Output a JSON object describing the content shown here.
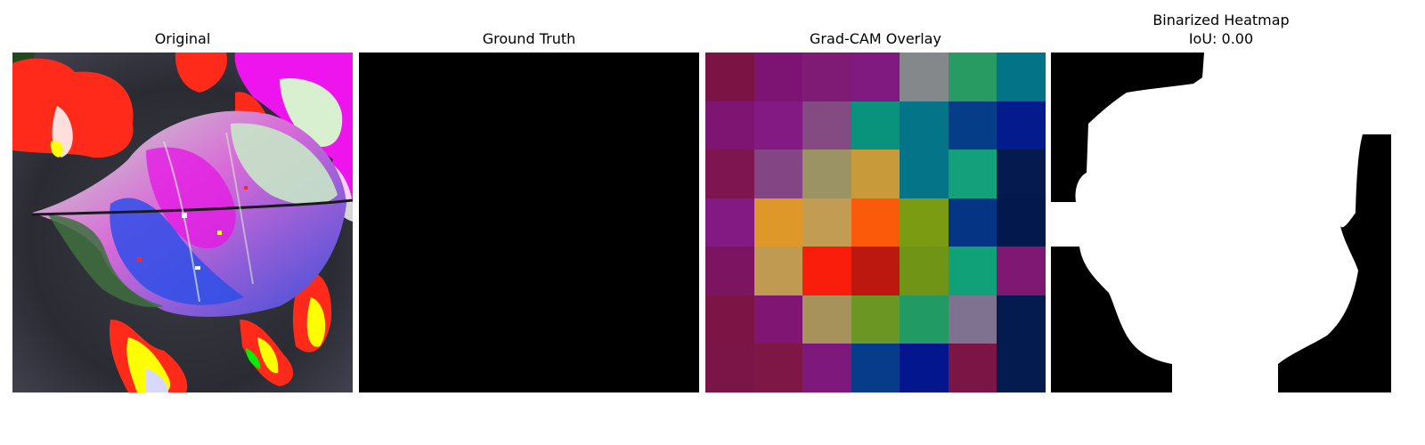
{
  "panels": [
    {
      "title": "Original"
    },
    {
      "title": "Ground Truth"
    },
    {
      "title": "Grad-CAM Overlay"
    },
    {
      "title": "Binarized Heatmap",
      "subtitle": "IoU: 0.00"
    }
  ],
  "gradcam_grid": [
    [
      "#7b1445",
      "#7d1372",
      "#7f1a75",
      "#801a80",
      "#85888a",
      "#279b62",
      "#037488"
    ],
    [
      "#7e1572",
      "#831a84",
      "#844b83",
      "#09937c",
      "#047488",
      "#063d89",
      "#041b8e"
    ],
    [
      "#7e1550",
      "#844584",
      "#9b9364",
      "#c99a3a",
      "#047488",
      "#14a07a",
      "#051a4e"
    ],
    [
      "#831a83",
      "#de982a",
      "#c29c52",
      "#fc5a0b",
      "#7b9b12",
      "#063484",
      "#03194d"
    ],
    [
      "#7d1462",
      "#bf9a50",
      "#fb1d0b",
      "#bd1810",
      "#6f9416",
      "#11a178",
      "#7f1872"
    ],
    [
      "#7c1546",
      "#801574",
      "#a8925b",
      "#6b9623",
      "#219b63",
      "#7f7290",
      "#031b4f"
    ],
    [
      "#7b1447",
      "#7e1646",
      "#7e187c",
      "#063c89",
      "#04168e",
      "#7b1546",
      "#031b4e"
    ]
  ],
  "binarized_fill": "#ffffff",
  "binarized_background": "#000000"
}
